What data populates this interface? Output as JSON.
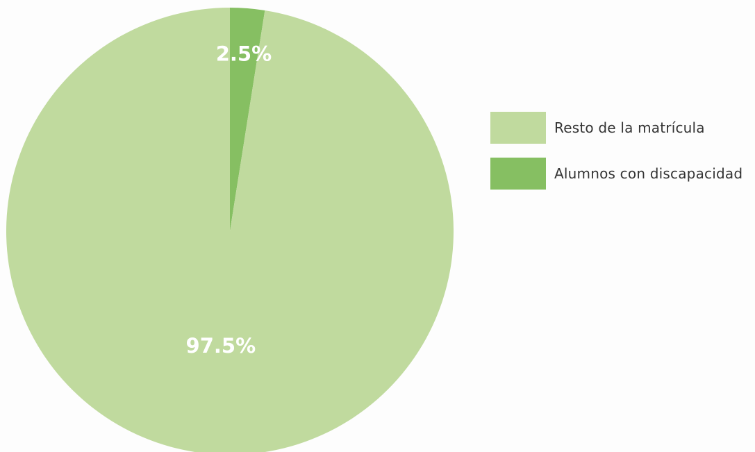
{
  "chart_data": {
    "type": "pie",
    "title": "",
    "categories": [
      "Alumnos con discapacidad",
      "Resto de la matrícula"
    ],
    "values": [
      2.5,
      97.5
    ],
    "labels": [
      "2.5%",
      "97.5%"
    ],
    "colors": [
      "#86bf62",
      "#c0da9e"
    ],
    "start_angle": "12 o'clock, clockwise",
    "legend_position": "right"
  },
  "legend": {
    "items": [
      {
        "label": "Resto de la matrícula",
        "color": "#c0da9e"
      },
      {
        "label": "Alumnos con discapacidad",
        "color": "#86bf62"
      }
    ]
  }
}
